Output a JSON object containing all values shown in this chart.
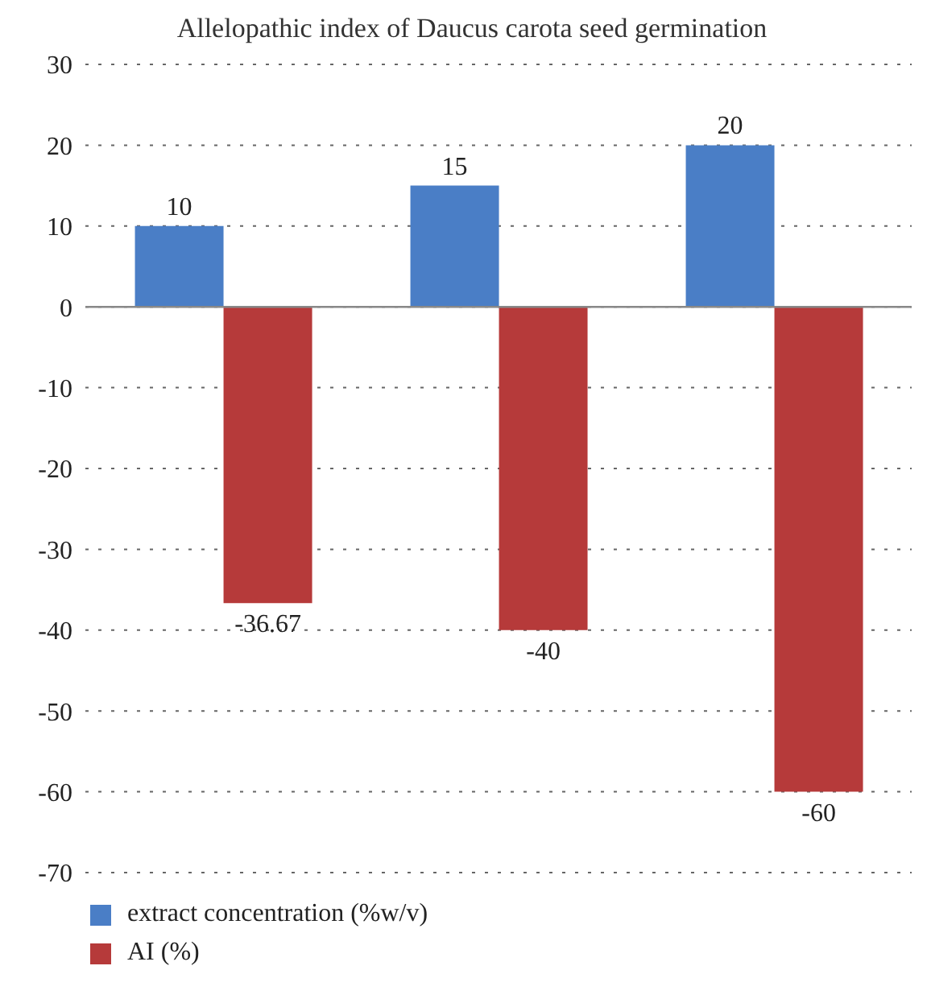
{
  "chart_data": {
    "type": "bar",
    "title": "Allelopathic index of Daucus carota seed germination",
    "categories": [
      null,
      null,
      null
    ],
    "series": [
      {
        "name": "extract concentration (%w/v)",
        "color": "#4a7ec6",
        "values": [
          10,
          15,
          20
        ]
      },
      {
        "name": "AI (%)",
        "color": "#b63a3a",
        "values": [
          -36.67,
          -40,
          -60
        ]
      }
    ],
    "ylim": [
      -70,
      30
    ],
    "yticks": [
      -70,
      -60,
      -50,
      -40,
      -30,
      -20,
      -10,
      0,
      10,
      20,
      30
    ],
    "grid": "y",
    "legend": "bottom",
    "data_labels": true
  }
}
